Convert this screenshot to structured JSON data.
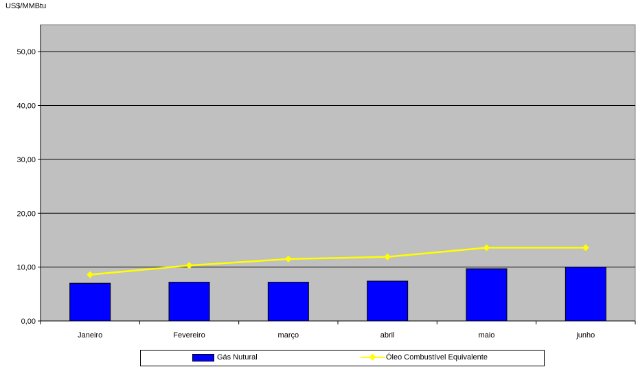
{
  "chart_data": {
    "type": "bar",
    "ylabel": "US$/MMBtu",
    "categories": [
      "Janeiro",
      "Fevereiro",
      "março",
      "abril",
      "maio",
      "junho"
    ],
    "ylim": [
      0,
      55
    ],
    "yticks": [
      "0,00",
      "10,00",
      "20,00",
      "30,00",
      "40,00",
      "50,00"
    ],
    "grid": true,
    "legend_position": "bottom",
    "series": [
      {
        "name": "Gás Nutural",
        "type": "bar",
        "color": "#0000ff",
        "values": [
          7.0,
          7.2,
          7.2,
          7.4,
          9.7,
          10.0
        ]
      },
      {
        "name": "Óleo Combustível Equivalente",
        "type": "line",
        "color": "#ffff00",
        "marker": "diamond",
        "values": [
          8.6,
          10.3,
          11.5,
          11.9,
          13.6,
          13.6
        ]
      }
    ]
  }
}
